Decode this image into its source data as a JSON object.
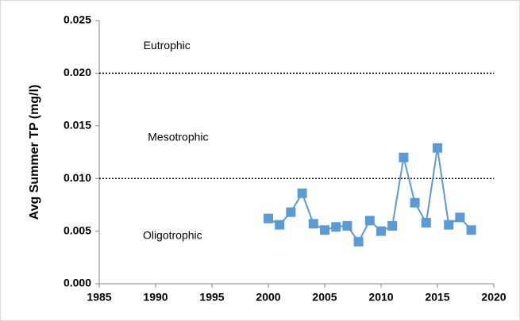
{
  "chart_data": {
    "type": "line",
    "y_label": "Avg Summer TP (mg/l)",
    "x": [
      2000,
      2001,
      2002,
      2003,
      2004,
      2005,
      2006,
      2007,
      2008,
      2009,
      2010,
      2011,
      2012,
      2013,
      2014,
      2015,
      2016,
      2017,
      2018
    ],
    "series": [
      {
        "color": "#5b9bd5",
        "values": [
          0.0062,
          0.0056,
          0.0068,
          0.0086,
          0.0057,
          0.0051,
          0.0054,
          0.0055,
          0.004,
          0.006,
          0.005,
          0.0055,
          0.012,
          0.0077,
          0.0058,
          0.0129,
          0.0056,
          0.0063,
          0.0051
        ]
      }
    ],
    "xlim": [
      1985,
      2020
    ],
    "xticks": [
      1985,
      1990,
      1995,
      2000,
      2005,
      2010,
      2015,
      2020
    ],
    "ylim": [
      0,
      0.025
    ],
    "yticks": [
      {
        "value": 0,
        "label": "0.000"
      },
      0.005,
      {
        "value": 0.01,
        "label": "0.010"
      },
      0.015,
      {
        "value": 0.02,
        "label": "0.020"
      },
      0.025
    ],
    "reference_lines": [
      0.01,
      0.02
    ],
    "annotations": [
      "Oligotrophic",
      "Mesotrophic",
      "Eutrophic"
    ]
  }
}
